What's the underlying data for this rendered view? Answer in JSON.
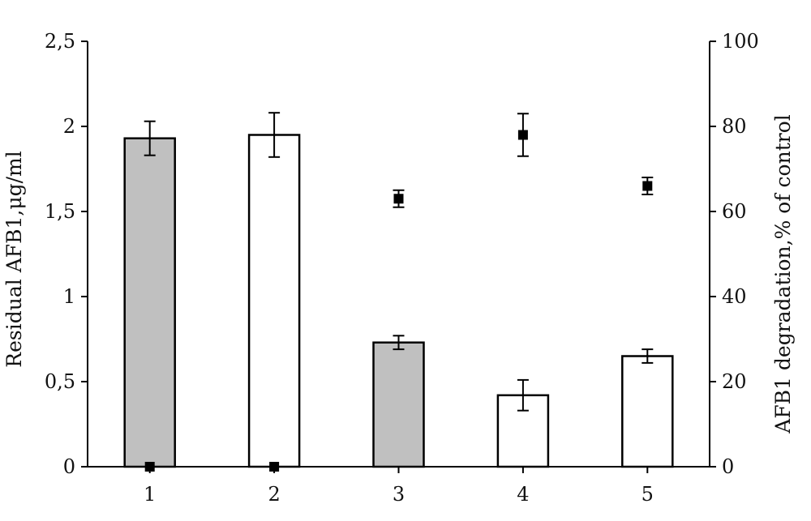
{
  "chart_data": {
    "type": "bar",
    "categories": [
      "1",
      "2",
      "3",
      "4",
      "5"
    ],
    "xlabel": "",
    "ylabel": "Residual AFB1,μg/ml",
    "y2label": "AFB1 degradation,% of control",
    "ylim": [
      0,
      2.5
    ],
    "y2lim": [
      0,
      100
    ],
    "y_ticks": [
      "0",
      "0,5",
      "1",
      "1,5",
      "2",
      "2,5"
    ],
    "y2_ticks": [
      "0",
      "20",
      "40",
      "60",
      "80",
      "100"
    ],
    "grid": false,
    "legend": "none",
    "series": [
      {
        "axis": "left",
        "kind": "bar",
        "values": [
          1.93,
          1.95,
          0.73,
          0.42,
          0.65
        ],
        "errors": [
          0.1,
          0.13,
          0.04,
          0.09,
          0.04
        ],
        "fill_colors": [
          "#c0c0c0",
          "#ffffff",
          "#c0c0c0",
          "#ffffff",
          "#ffffff"
        ]
      },
      {
        "axis": "right",
        "kind": "scatter",
        "marker": "square",
        "values": [
          0,
          0,
          63,
          78,
          66
        ],
        "errors": [
          0,
          0,
          2,
          5,
          2
        ]
      }
    ]
  },
  "colors": {
    "axis": "#000000",
    "marker": "#000000",
    "bar_stroke": "#000000"
  }
}
